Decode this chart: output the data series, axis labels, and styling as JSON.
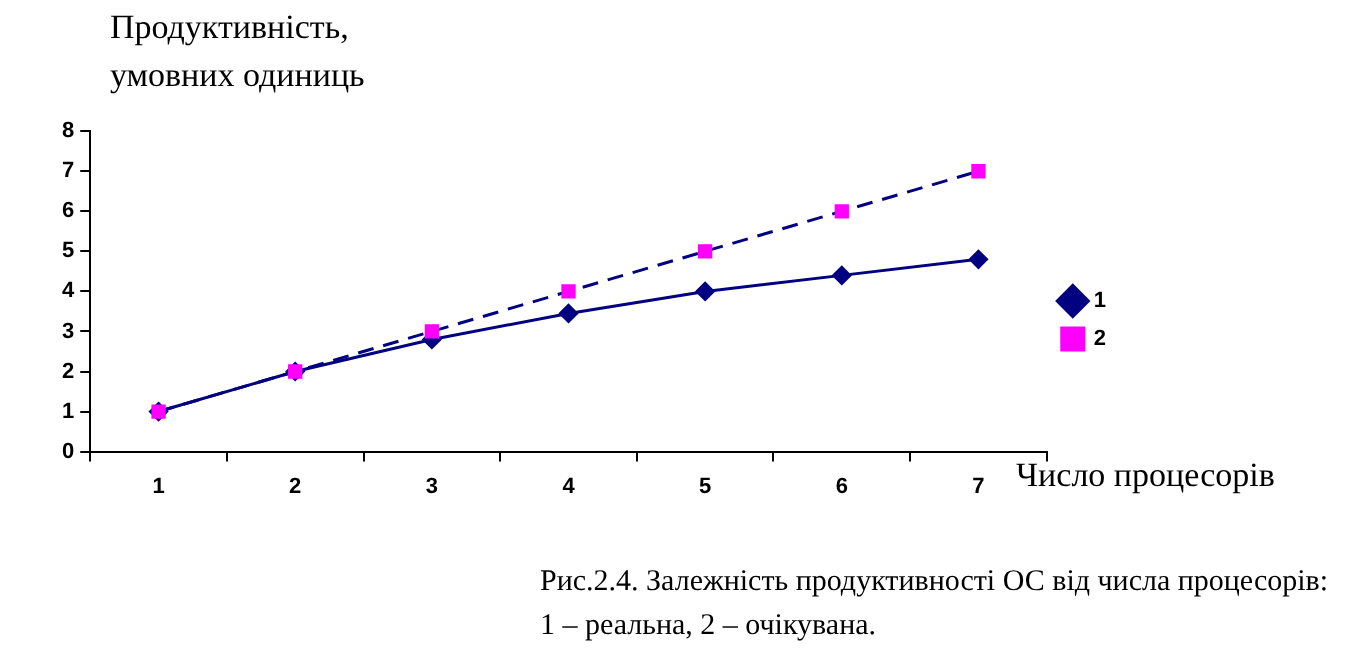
{
  "chart_data": {
    "type": "line",
    "ylabel": "Продуктивність,\nумовних одиниць",
    "xlabel": "Число процесорів",
    "categories": [
      "1",
      "2",
      "3",
      "4",
      "5",
      "6",
      "7"
    ],
    "series": [
      {
        "name": "1",
        "color": "#000080",
        "values": [
          1,
          2,
          2.8,
          3.45,
          4,
          4.4,
          4.8
        ],
        "marker": "diamond",
        "line_style": "solid"
      },
      {
        "name": "2",
        "color": "#ff00ff",
        "values": [
          1,
          2,
          3,
          4,
          5,
          6,
          7
        ],
        "marker": "square",
        "line_style": "dashed"
      }
    ],
    "ylim": [
      0,
      8
    ],
    "yticks": [
      0,
      1,
      2,
      3,
      4,
      5,
      6,
      7,
      8
    ],
    "grid": false,
    "legend": "right",
    "annotations": [
      "Рис.2.4. Залежність продуктивності ОС від числа процесорів:\n1 – реальна, 2 – очікувана."
    ]
  }
}
